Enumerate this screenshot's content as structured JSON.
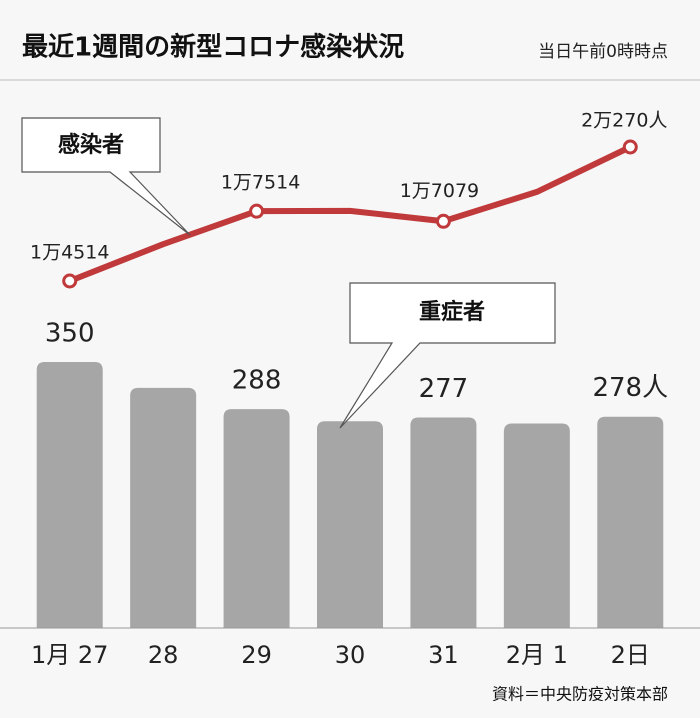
{
  "chart_data": {
    "type": "bar-line",
    "title": "最近1週間の新型コロナ感染状況",
    "subtitle": "当日午前0時時点",
    "source": "資料＝中央防疫対策本部",
    "categories": [
      "1月 27",
      "28",
      "29",
      "30",
      "31",
      "2月 1",
      "2日"
    ],
    "series": [
      {
        "name": "感染者",
        "type": "line",
        "color": "#c0393b",
        "values": [
          14514,
          16096,
          17514,
          17528,
          17079,
          18341,
          20270
        ],
        "value_labels": [
          "1万4514",
          null,
          "1万7514",
          null,
          "1万7079",
          null,
          "2万270人"
        ]
      },
      {
        "name": "重症者",
        "type": "bar",
        "color": "#a6a6a6",
        "values": [
          350,
          316,
          288,
          272,
          277,
          269,
          278
        ],
        "value_labels": [
          "350",
          null,
          "288",
          null,
          "277",
          null,
          "278人"
        ]
      }
    ]
  }
}
